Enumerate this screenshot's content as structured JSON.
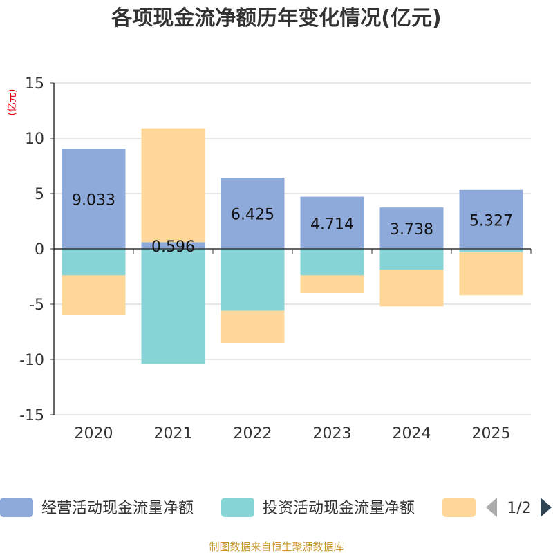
{
  "chart_data": {
    "type": "bar",
    "stacked": true,
    "title": "各项现金流净额历年变化情况(亿元)",
    "ylabel": "(亿元)",
    "xlabel": "",
    "ylim": [
      -15,
      15
    ],
    "yticks": [
      15,
      10,
      5,
      0,
      -5,
      -10,
      -15
    ],
    "categories": [
      "2020",
      "2021",
      "2022",
      "2023",
      "2024",
      "2025"
    ],
    "series": [
      {
        "name": "经营活动现金流量净额",
        "color": "#8eaadb",
        "values": [
          9.033,
          0.596,
          6.425,
          4.714,
          3.738,
          5.327
        ],
        "labels": [
          "9.033",
          "0.596",
          "6.425",
          "4.714",
          "3.738",
          "5.327"
        ]
      },
      {
        "name": "投资活动现金流量净额",
        "color": "#86d4d6",
        "values": [
          -2.4,
          -10.4,
          -5.6,
          -2.4,
          -1.9,
          -0.3
        ]
      },
      {
        "name": "",
        "color": "#ffd899",
        "values": [
          -3.6,
          10.3,
          -2.9,
          -1.6,
          -3.3,
          -3.9
        ]
      }
    ],
    "legend": {
      "position": "bottom",
      "page": "1/2"
    },
    "grid": true
  },
  "source_text": "制图数据来自恒生聚源数据库"
}
